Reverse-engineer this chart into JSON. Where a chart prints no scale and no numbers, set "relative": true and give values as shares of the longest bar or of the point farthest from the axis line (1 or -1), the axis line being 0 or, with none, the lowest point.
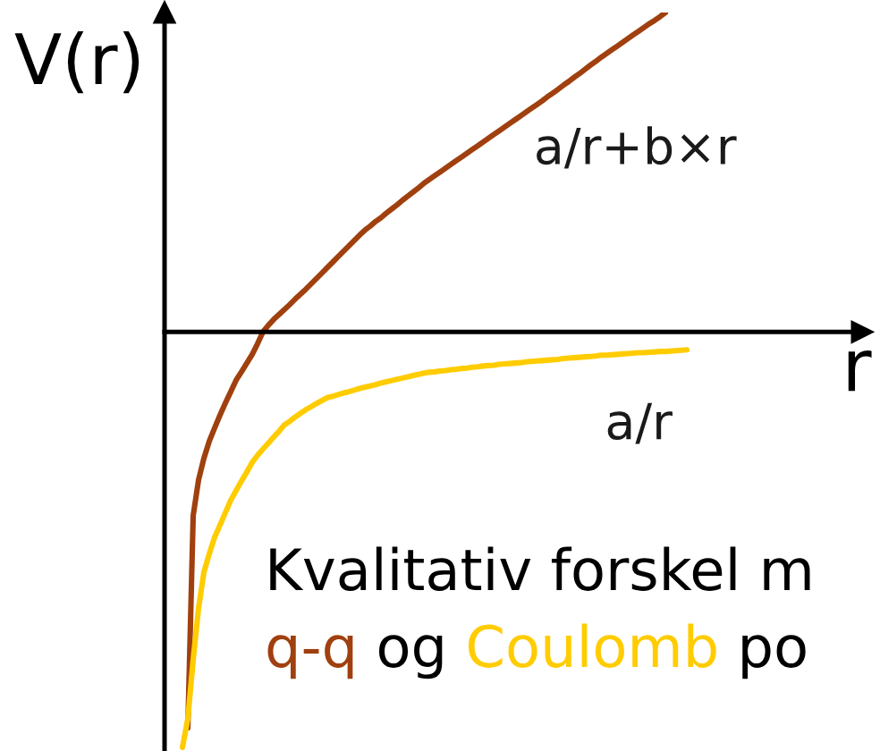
{
  "chart_data": {
    "type": "line",
    "relative": true,
    "ylabel": "V(r)",
    "xlabel": "r",
    "annotations": [
      "Kvalitativ forskel m",
      "q-q",
      "og",
      "Coulomb",
      "po"
    ],
    "categories": [
      null,
      null,
      null,
      null,
      null,
      null,
      null,
      null,
      null,
      null,
      null,
      null,
      null,
      null,
      null,
      null,
      null,
      null,
      null,
      null,
      null,
      null,
      null,
      null,
      null,
      null,
      null,
      null,
      null,
      null,
      null,
      null,
      null,
      null,
      null,
      null,
      null,
      null,
      null,
      null,
      null,
      null,
      null,
      null,
      null,
      null,
      null,
      null,
      null,
      null,
      null,
      null,
      null,
      null,
      null,
      null,
      null,
      null,
      null,
      null,
      null,
      null,
      null,
      null,
      null,
      null,
      null,
      null,
      null,
      null,
      null,
      null,
      null,
      null,
      null,
      null,
      null,
      null,
      null,
      null,
      null,
      null,
      null,
      null,
      null,
      null,
      null,
      null,
      null,
      null,
      null,
      null,
      null,
      null,
      null
    ],
    "series": [
      {
        "name": "a/r+b×r",
        "color": "#a0400f",
        "values": [
          null,
          -0.953,
          -0.442,
          -0.356,
          -0.304,
          -0.263,
          -0.231,
          -0.2,
          -0.171,
          -0.144,
          -0.116,
          -0.096,
          -0.075,
          -0.054,
          -0.028,
          0.0,
          0.016,
          0.03,
          0.042,
          0.054,
          0.066,
          0.079,
          0.091,
          0.103,
          0.116,
          0.129,
          0.142,
          0.155,
          0.168,
          0.181,
          0.194,
          0.207,
          0.22,
          0.233,
          0.245,
          0.255,
          0.266,
          0.275,
          0.286,
          0.296,
          0.306,
          0.317,
          0.327,
          0.337,
          0.347,
          0.358,
          0.367,
          0.376,
          0.385,
          0.394,
          0.403,
          0.412,
          0.421,
          0.43,
          0.439,
          0.448,
          0.457,
          0.466,
          0.475,
          0.484,
          0.493,
          0.502,
          0.511,
          0.52,
          0.529,
          0.538,
          0.547,
          0.556,
          0.566,
          0.575,
          0.584,
          0.594,
          0.603,
          0.613,
          0.622,
          0.632,
          0.642,
          0.651,
          0.661,
          0.67,
          0.679,
          0.688,
          0.697,
          0.706,
          0.715,
          0.724,
          0.733,
          0.742,
          0.75,
          0.759,
          0.769,
          null,
          null,
          null,
          null
        ]
      },
      {
        "name": "a/r",
        "color": "#ffcc00",
        "values": [
          -1.0,
          -0.931,
          -0.789,
          -0.665,
          -0.578,
          -0.534,
          -0.494,
          -0.465,
          -0.435,
          -0.405,
          -0.382,
          -0.359,
          -0.337,
          -0.314,
          -0.297,
          -0.282,
          -0.268,
          -0.253,
          -0.239,
          -0.224,
          -0.215,
          -0.205,
          -0.196,
          -0.187,
          -0.18,
          -0.172,
          -0.165,
          -0.158,
          -0.155,
          -0.151,
          -0.147,
          -0.144,
          -0.14,
          -0.136,
          -0.133,
          -0.13,
          -0.127,
          -0.123,
          -0.12,
          -0.117,
          -0.114,
          -0.111,
          -0.108,
          -0.105,
          -0.102,
          -0.099,
          -0.097,
          -0.096,
          -0.094,
          -0.093,
          -0.091,
          -0.09,
          -0.088,
          -0.087,
          -0.085,
          -0.084,
          -0.082,
          -0.081,
          -0.08,
          -0.078,
          -0.077,
          -0.076,
          -0.075,
          -0.074,
          -0.072,
          -0.071,
          -0.07,
          -0.069,
          -0.068,
          -0.067,
          -0.066,
          -0.064,
          -0.063,
          -0.062,
          -0.061,
          -0.06,
          -0.059,
          -0.058,
          -0.056,
          -0.056,
          -0.055,
          -0.054,
          -0.053,
          -0.052,
          -0.051,
          -0.05,
          -0.05,
          -0.049,
          -0.048,
          -0.047,
          -0.047,
          -0.046,
          -0.045,
          -0.044,
          -0.043
        ]
      }
    ]
  }
}
